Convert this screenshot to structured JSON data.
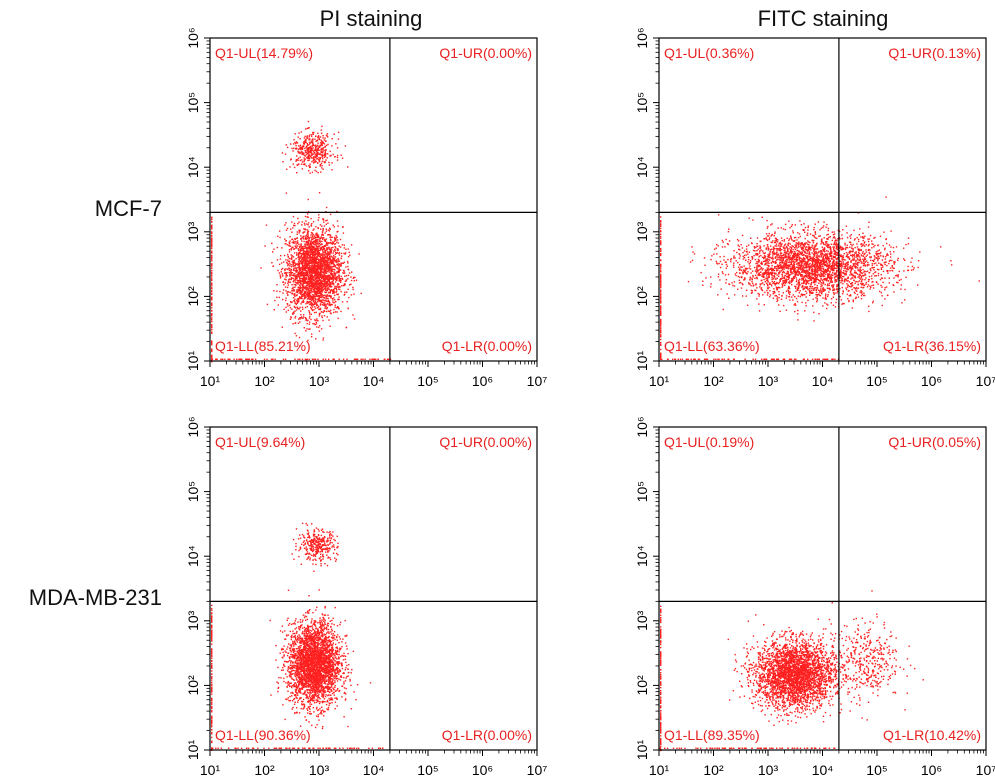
{
  "column_titles": [
    "PI staining",
    "FITC staining"
  ],
  "row_labels": [
    "MCF-7",
    "MDA-MB-231"
  ],
  "colors": {
    "dots": "#ff2020",
    "quadrant_text": "#e82020",
    "axis": "#000000"
  },
  "chart_data": [
    {
      "type": "scatter",
      "row": "MCF-7",
      "column": "PI staining",
      "xscale": "log",
      "yscale": "log",
      "xlim": [
        10,
        10000000
      ],
      "ylim": [
        10,
        1000000
      ],
      "gate": {
        "x": 20000,
        "y": 2000
      },
      "quadrants": {
        "UL": "Q1-UL(14.79%)",
        "UR": "Q1-UR(0.00%)",
        "LL": "Q1-LL(85.21%)",
        "LR": "Q1-LR(0.00%)"
      },
      "populations": [
        {
          "cx": 800,
          "cy": 250,
          "sx": 0.26,
          "sy": 0.34,
          "n": 2800
        },
        {
          "cx": 750,
          "cy": 18000,
          "sx": 0.2,
          "sy": 0.14,
          "n": 420
        }
      ]
    },
    {
      "type": "scatter",
      "row": "MCF-7",
      "column": "FITC staining",
      "xscale": "log",
      "yscale": "log",
      "xlim": [
        10,
        10000000
      ],
      "ylim": [
        10,
        1000000
      ],
      "gate": {
        "x": 20000,
        "y": 2000
      },
      "quadrants": {
        "UL": "Q1-UL(0.36%)",
        "UR": "Q1-UR(0.13%)",
        "LL": "Q1-LL(63.36%)",
        "LR": "Q1-LR(36.15%)"
      },
      "populations": [
        {
          "cx": 6000,
          "cy": 300,
          "sx": 0.72,
          "sy": 0.25,
          "n": 3000
        }
      ]
    },
    {
      "type": "scatter",
      "row": "MDA-MB-231",
      "column": "PI staining",
      "xscale": "log",
      "yscale": "log",
      "xlim": [
        10,
        10000000
      ],
      "ylim": [
        10,
        1000000
      ],
      "gate": {
        "x": 20000,
        "y": 2000
      },
      "quadrants": {
        "UL": "Q1-UL(9.64%)",
        "UR": "Q1-UR(0.00%)",
        "LL": "Q1-LL(90.36%)",
        "LR": "Q1-LR(0.00%)"
      },
      "populations": [
        {
          "cx": 800,
          "cy": 220,
          "sx": 0.24,
          "sy": 0.32,
          "n": 3000
        },
        {
          "cx": 900,
          "cy": 15000,
          "sx": 0.18,
          "sy": 0.12,
          "n": 320
        }
      ]
    },
    {
      "type": "scatter",
      "row": "MDA-MB-231",
      "column": "FITC staining",
      "xscale": "log",
      "yscale": "log",
      "xlim": [
        10,
        10000000
      ],
      "ylim": [
        10,
        1000000
      ],
      "gate": {
        "x": 20000,
        "y": 2000
      },
      "quadrants": {
        "UL": "Q1-UL(0.19%)",
        "UR": "Q1-UR(0.05%)",
        "LL": "Q1-LL(89.35%)",
        "LR": "Q1-LR(10.42%)"
      },
      "populations": [
        {
          "cx": 3000,
          "cy": 150,
          "sx": 0.36,
          "sy": 0.26,
          "n": 2900
        },
        {
          "cx": 60000,
          "cy": 250,
          "sx": 0.32,
          "sy": 0.3,
          "n": 380
        }
      ]
    }
  ]
}
